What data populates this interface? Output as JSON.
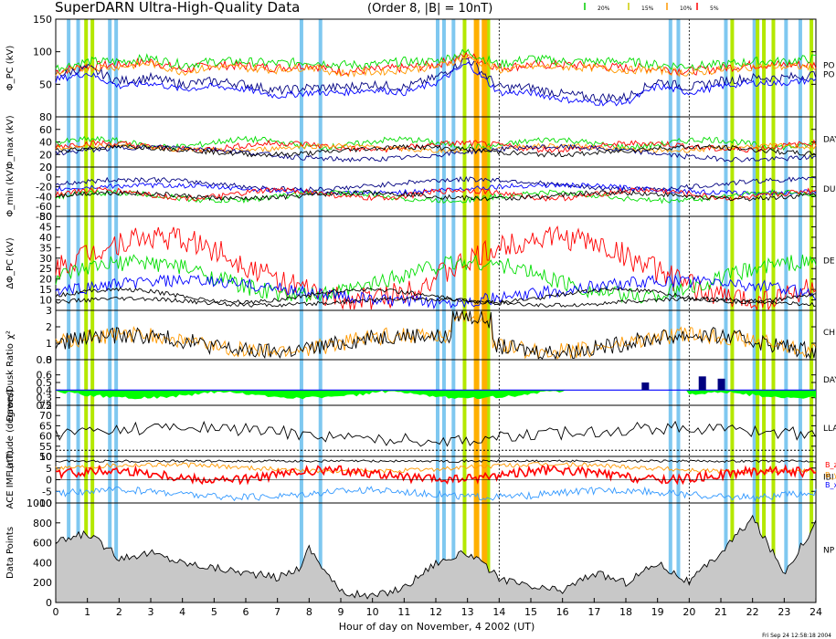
{
  "header": {
    "title": "SuperDARN Ultra-High-Quality Data",
    "subtitle": "(Order 8, |B| = 10nT)",
    "legend": [
      {
        "label": "20%",
        "color": "#00cc00"
      },
      {
        "label": "15%",
        "color": "#cccc00"
      },
      {
        "label": "10%",
        "color": "#ff9900"
      },
      {
        "label": "5%",
        "color": "#ff0000"
      }
    ]
  },
  "footer": {
    "xlabel": "Hour of day on November, 4 2002 (UT)",
    "stamp": "Fri Sep 24 12:58:18 2004"
  },
  "colors": {
    "cyan_band": "#7fc8f0",
    "yellowgreen_band": "#b4e800",
    "orange_band": "#ffb000",
    "dark_blue": "#000080",
    "blue": "#0000ff",
    "red": "#ff0000",
    "green": "#00dd00",
    "orange": "#ff9900",
    "fill_green": "#00ff00",
    "gray_fill": "#c8c8c8"
  },
  "chart_data": {
    "type": "line",
    "x_axis": {
      "label": "Hour of day on November, 4 2002 (UT)",
      "range": [
        0,
        24
      ],
      "ticks": [
        0,
        1,
        2,
        3,
        4,
        5,
        6,
        7,
        8,
        9,
        10,
        11,
        12,
        13,
        14,
        15,
        16,
        17,
        18,
        19,
        20,
        21,
        22,
        23,
        24
      ]
    },
    "bands": {
      "cyan": [
        0.35,
        0.65,
        1.65,
        1.85,
        7.7,
        8.3,
        12.0,
        12.2,
        12.5,
        19.35,
        19.6,
        21.1,
        22.0,
        23.0,
        23.45
      ],
      "yellowgreen": [
        0.9,
        1.1,
        12.85,
        13.6,
        21.3,
        22.1,
        22.3,
        22.6,
        23.8
      ],
      "orange": [
        13.2,
        13.45
      ]
    },
    "dashed_x": [
      14.0,
      20.0
    ],
    "panels": [
      {
        "id": "phi_pc",
        "ylabel": "Φ_PC (kV)",
        "yticks": [
          50,
          100,
          150
        ],
        "ylim": [
          0,
          150
        ],
        "side_label": "PO",
        "side_label2": "PO"
      },
      {
        "id": "phi_max",
        "ylabel": "Φ_max (kV)",
        "yticks": [
          0,
          20,
          40,
          60,
          80
        ],
        "ylim": [
          0,
          80
        ],
        "side_label": "DAY"
      },
      {
        "id": "phi_min",
        "ylabel": "Φ_min (kV)",
        "yticks": [
          -80,
          -60,
          -40,
          -20,
          0,
          20
        ],
        "ylim": [
          -80,
          20
        ],
        "side_label": "DU"
      },
      {
        "id": "delta_phi",
        "ylabel": "ΔΦ_PC (kV)",
        "yticks": [
          10,
          15,
          20,
          25,
          30,
          35,
          40,
          45,
          50
        ],
        "ylim": [
          5,
          50
        ],
        "side_label": "DE"
      },
      {
        "id": "chi2",
        "ylabel": "χ²",
        "yticks": [
          0,
          1,
          2,
          3
        ],
        "ylim": [
          0,
          3
        ],
        "side_label": "CH"
      },
      {
        "id": "ratio",
        "ylabel": "Dawn/Dusk Ratio",
        "yticks": [
          0.2,
          0.3,
          0.4,
          0.5,
          0.6,
          0.8
        ],
        "ylim": [
          0.2,
          0.8
        ],
        "side_label": "DAY"
      },
      {
        "id": "lat",
        "ylabel": "Latitude (degrees)",
        "yticks": [
          50,
          55,
          60,
          65,
          70,
          75
        ],
        "ylim": [
          50,
          75
        ],
        "side_label": "LLA"
      },
      {
        "id": "imf",
        "ylabel": "ACE IMF (nT)",
        "yticks": [
          -10,
          -5,
          0,
          5,
          10
        ],
        "ylim": [
          -10,
          10
        ],
        "side_label": "IBI",
        "components": [
          "B_z",
          "B_y",
          "B_x"
        ]
      },
      {
        "id": "points",
        "ylabel": "Data Points",
        "yticks": [
          0,
          200,
          400,
          600,
          800,
          1000
        ],
        "ylim": [
          0,
          1000
        ],
        "side_label": "NP"
      }
    ],
    "phi_pc_series": [
      {
        "x": [
          0,
          1,
          2,
          3,
          4,
          5,
          6,
          7,
          8,
          9,
          10,
          11,
          12,
          13,
          14,
          15,
          16,
          17,
          18,
          19,
          20,
          21,
          22,
          23,
          24
        ],
        "color": "#ff0000",
        "values": [
          70,
          78,
          80,
          85,
          72,
          80,
          78,
          75,
          80,
          70,
          72,
          75,
          80,
          95,
          75,
          80,
          80,
          78,
          75,
          75,
          70,
          75,
          80,
          80,
          80
        ]
      },
      {
        "x": [
          0,
          1,
          2,
          3,
          4,
          5,
          6,
          7,
          8,
          9,
          10,
          11,
          12,
          13,
          14,
          15,
          16,
          17,
          18,
          19,
          20,
          21,
          22,
          23,
          24
        ],
        "color": "#00dd00",
        "values": [
          75,
          85,
          85,
          90,
          80,
          85,
          85,
          82,
          85,
          80,
          80,
          85,
          85,
          100,
          80,
          90,
          85,
          85,
          85,
          80,
          78,
          80,
          85,
          85,
          90
        ]
      },
      {
        "x": [
          0,
          1,
          2,
          3,
          4,
          5,
          6,
          7,
          8,
          9,
          10,
          11,
          12,
          13,
          14,
          15,
          16,
          17,
          18,
          19,
          20,
          21,
          22,
          23,
          24
        ],
        "color": "#000080",
        "values": [
          65,
          75,
          55,
          60,
          50,
          55,
          50,
          40,
          45,
          45,
          50,
          45,
          60,
          90,
          45,
          45,
          35,
          30,
          30,
          55,
          45,
          55,
          60,
          60,
          65
        ]
      }
    ],
    "points_values": {
      "x": [
        0,
        1,
        2,
        3,
        4,
        5,
        6,
        7,
        7.7,
        8,
        9,
        10,
        11,
        12,
        13,
        14,
        15,
        16,
        17,
        18,
        19,
        20,
        21,
        22,
        23,
        24
      ],
      "values": [
        600,
        700,
        450,
        500,
        400,
        350,
        300,
        250,
        350,
        550,
        100,
        60,
        150,
        400,
        500,
        250,
        150,
        120,
        300,
        200,
        400,
        200,
        500,
        850,
        300,
        800
      ]
    }
  }
}
